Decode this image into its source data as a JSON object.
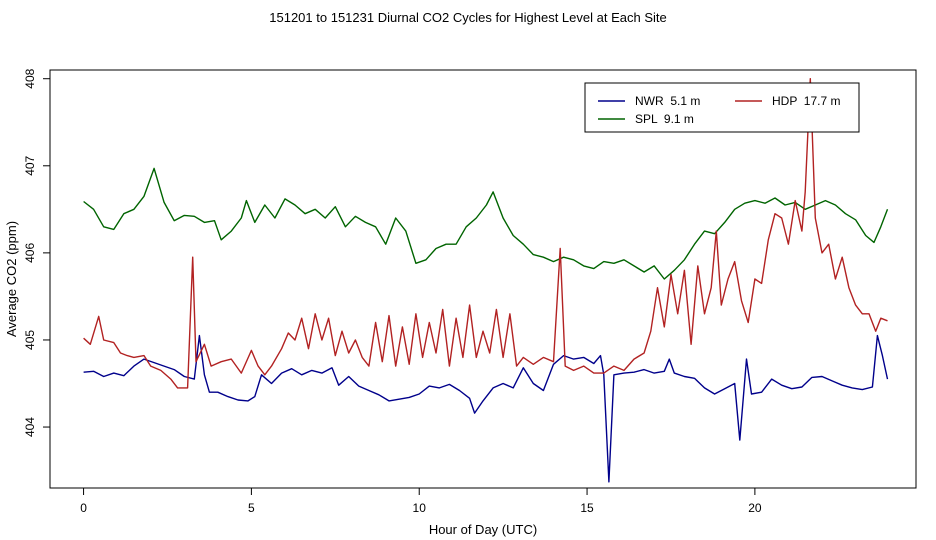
{
  "chart_data": {
    "type": "line",
    "title": "151201  to  151231 Diurnal CO2 Cycles for Highest Level at Each Site",
    "xlabel": "Hour of Day (UTC)",
    "ylabel": "Average CO2 (ppm)",
    "xlim": [
      -1,
      24.8
    ],
    "ylim": [
      403.3,
      408.1
    ],
    "xticks": [
      0,
      5,
      10,
      15,
      20
    ],
    "yticks": [
      404,
      405,
      406,
      407,
      408
    ],
    "grid": false,
    "legend_position": "top-right",
    "series": [
      {
        "name": "NWR  5.1 m",
        "color": "#00008B",
        "points": [
          [
            0.0,
            404.63
          ],
          [
            0.3,
            404.64
          ],
          [
            0.6,
            404.58
          ],
          [
            0.9,
            404.62
          ],
          [
            1.2,
            404.59
          ],
          [
            1.5,
            404.7
          ],
          [
            1.8,
            404.78
          ],
          [
            2.1,
            404.74
          ],
          [
            2.4,
            404.7
          ],
          [
            2.7,
            404.66
          ],
          [
            3.0,
            404.58
          ],
          [
            3.3,
            404.55
          ],
          [
            3.45,
            405.05
          ],
          [
            3.6,
            404.6
          ],
          [
            3.75,
            404.4
          ],
          [
            4.0,
            404.4
          ],
          [
            4.3,
            404.35
          ],
          [
            4.6,
            404.31
          ],
          [
            4.9,
            404.3
          ],
          [
            5.1,
            404.35
          ],
          [
            5.3,
            404.6
          ],
          [
            5.6,
            404.5
          ],
          [
            5.9,
            404.62
          ],
          [
            6.2,
            404.67
          ],
          [
            6.5,
            404.6
          ],
          [
            6.8,
            404.65
          ],
          [
            7.1,
            404.62
          ],
          [
            7.4,
            404.68
          ],
          [
            7.6,
            404.48
          ],
          [
            7.9,
            404.58
          ],
          [
            8.2,
            404.47
          ],
          [
            8.5,
            404.42
          ],
          [
            8.8,
            404.37
          ],
          [
            9.1,
            404.3
          ],
          [
            9.4,
            404.32
          ],
          [
            9.7,
            404.34
          ],
          [
            10.0,
            404.38
          ],
          [
            10.3,
            404.47
          ],
          [
            10.6,
            404.45
          ],
          [
            10.9,
            404.49
          ],
          [
            11.2,
            404.42
          ],
          [
            11.5,
            404.33
          ],
          [
            11.65,
            404.16
          ],
          [
            11.9,
            404.3
          ],
          [
            12.2,
            404.45
          ],
          [
            12.5,
            404.5
          ],
          [
            12.8,
            404.45
          ],
          [
            13.1,
            404.68
          ],
          [
            13.4,
            404.5
          ],
          [
            13.7,
            404.42
          ],
          [
            14.0,
            404.72
          ],
          [
            14.3,
            404.82
          ],
          [
            14.6,
            404.78
          ],
          [
            14.9,
            404.8
          ],
          [
            15.2,
            404.73
          ],
          [
            15.4,
            404.82
          ],
          [
            15.5,
            404.6
          ],
          [
            15.65,
            403.37
          ],
          [
            15.8,
            404.6
          ],
          [
            16.1,
            404.62
          ],
          [
            16.4,
            404.63
          ],
          [
            16.7,
            404.66
          ],
          [
            17.0,
            404.62
          ],
          [
            17.3,
            404.64
          ],
          [
            17.45,
            404.78
          ],
          [
            17.6,
            404.62
          ],
          [
            17.9,
            404.58
          ],
          [
            18.2,
            404.56
          ],
          [
            18.5,
            404.45
          ],
          [
            18.8,
            404.38
          ],
          [
            19.1,
            404.44
          ],
          [
            19.4,
            404.5
          ],
          [
            19.55,
            403.85
          ],
          [
            19.75,
            404.78
          ],
          [
            19.9,
            404.38
          ],
          [
            20.2,
            404.4
          ],
          [
            20.5,
            404.55
          ],
          [
            20.8,
            404.48
          ],
          [
            21.1,
            404.44
          ],
          [
            21.4,
            404.46
          ],
          [
            21.7,
            404.57
          ],
          [
            22.0,
            404.58
          ],
          [
            22.3,
            404.53
          ],
          [
            22.6,
            404.48
          ],
          [
            22.9,
            404.45
          ],
          [
            23.2,
            404.43
          ],
          [
            23.5,
            404.46
          ],
          [
            23.65,
            405.05
          ],
          [
            23.8,
            404.82
          ],
          [
            23.95,
            404.55
          ]
        ]
      },
      {
        "name": "SPL  9.1 m",
        "color": "#006400",
        "points": [
          [
            0.0,
            406.59
          ],
          [
            0.3,
            406.5
          ],
          [
            0.6,
            406.3
          ],
          [
            0.9,
            406.27
          ],
          [
            1.2,
            406.45
          ],
          [
            1.5,
            406.5
          ],
          [
            1.8,
            406.65
          ],
          [
            2.1,
            406.97
          ],
          [
            2.4,
            406.58
          ],
          [
            2.7,
            406.37
          ],
          [
            3.0,
            406.43
          ],
          [
            3.3,
            406.42
          ],
          [
            3.6,
            406.35
          ],
          [
            3.9,
            406.37
          ],
          [
            4.1,
            406.15
          ],
          [
            4.4,
            406.25
          ],
          [
            4.7,
            406.4
          ],
          [
            4.85,
            406.6
          ],
          [
            5.1,
            406.35
          ],
          [
            5.4,
            406.55
          ],
          [
            5.7,
            406.4
          ],
          [
            6.0,
            406.62
          ],
          [
            6.3,
            406.55
          ],
          [
            6.6,
            406.45
          ],
          [
            6.9,
            406.5
          ],
          [
            7.2,
            406.4
          ],
          [
            7.5,
            406.53
          ],
          [
            7.8,
            406.3
          ],
          [
            8.1,
            406.42
          ],
          [
            8.4,
            406.35
          ],
          [
            8.7,
            406.3
          ],
          [
            9.0,
            406.1
          ],
          [
            9.3,
            406.4
          ],
          [
            9.6,
            406.25
          ],
          [
            9.9,
            405.88
          ],
          [
            10.2,
            405.92
          ],
          [
            10.5,
            406.05
          ],
          [
            10.8,
            406.1
          ],
          [
            11.1,
            406.1
          ],
          [
            11.4,
            406.3
          ],
          [
            11.7,
            406.4
          ],
          [
            12.0,
            406.55
          ],
          [
            12.2,
            406.7
          ],
          [
            12.5,
            406.4
          ],
          [
            12.8,
            406.2
          ],
          [
            13.1,
            406.1
          ],
          [
            13.4,
            405.98
          ],
          [
            13.7,
            405.95
          ],
          [
            14.0,
            405.9
          ],
          [
            14.3,
            405.95
          ],
          [
            14.6,
            405.92
          ],
          [
            14.9,
            405.85
          ],
          [
            15.2,
            405.82
          ],
          [
            15.5,
            405.9
          ],
          [
            15.8,
            405.88
          ],
          [
            16.1,
            405.92
          ],
          [
            16.4,
            405.85
          ],
          [
            16.7,
            405.78
          ],
          [
            17.0,
            405.85
          ],
          [
            17.3,
            405.7
          ],
          [
            17.6,
            405.8
          ],
          [
            17.9,
            405.92
          ],
          [
            18.2,
            406.1
          ],
          [
            18.5,
            406.25
          ],
          [
            18.8,
            406.22
          ],
          [
            19.1,
            406.35
          ],
          [
            19.4,
            406.5
          ],
          [
            19.7,
            406.57
          ],
          [
            20.0,
            406.6
          ],
          [
            20.3,
            406.57
          ],
          [
            20.6,
            406.63
          ],
          [
            20.9,
            406.55
          ],
          [
            21.2,
            406.58
          ],
          [
            21.5,
            406.5
          ],
          [
            21.8,
            406.55
          ],
          [
            22.1,
            406.6
          ],
          [
            22.4,
            406.55
          ],
          [
            22.7,
            406.45
          ],
          [
            23.0,
            406.38
          ],
          [
            23.3,
            406.2
          ],
          [
            23.55,
            406.12
          ],
          [
            23.75,
            406.3
          ],
          [
            23.95,
            406.5
          ]
        ]
      },
      {
        "name": "HDP  17.7 m",
        "color": "#B22222",
        "points": [
          [
            0.0,
            405.02
          ],
          [
            0.2,
            404.95
          ],
          [
            0.45,
            405.27
          ],
          [
            0.6,
            405.0
          ],
          [
            0.9,
            404.97
          ],
          [
            1.1,
            404.85
          ],
          [
            1.3,
            404.82
          ],
          [
            1.5,
            404.8
          ],
          [
            1.8,
            404.82
          ],
          [
            2.0,
            404.7
          ],
          [
            2.3,
            404.65
          ],
          [
            2.6,
            404.55
          ],
          [
            2.8,
            404.45
          ],
          [
            3.1,
            404.45
          ],
          [
            3.25,
            405.95
          ],
          [
            3.35,
            404.75
          ],
          [
            3.6,
            404.95
          ],
          [
            3.8,
            404.7
          ],
          [
            4.1,
            404.75
          ],
          [
            4.4,
            404.78
          ],
          [
            4.7,
            404.62
          ],
          [
            5.0,
            404.88
          ],
          [
            5.2,
            404.7
          ],
          [
            5.4,
            404.6
          ],
          [
            5.6,
            404.7
          ],
          [
            5.9,
            404.9
          ],
          [
            6.1,
            405.08
          ],
          [
            6.3,
            405.0
          ],
          [
            6.5,
            405.25
          ],
          [
            6.7,
            404.9
          ],
          [
            6.9,
            405.3
          ],
          [
            7.1,
            405.0
          ],
          [
            7.3,
            405.25
          ],
          [
            7.5,
            404.82
          ],
          [
            7.7,
            405.1
          ],
          [
            7.9,
            404.85
          ],
          [
            8.1,
            405.0
          ],
          [
            8.3,
            404.8
          ],
          [
            8.5,
            404.7
          ],
          [
            8.7,
            405.2
          ],
          [
            8.9,
            404.75
          ],
          [
            9.1,
            405.28
          ],
          [
            9.3,
            404.7
          ],
          [
            9.5,
            405.15
          ],
          [
            9.7,
            404.72
          ],
          [
            9.9,
            405.3
          ],
          [
            10.1,
            404.8
          ],
          [
            10.3,
            405.2
          ],
          [
            10.5,
            404.85
          ],
          [
            10.7,
            405.35
          ],
          [
            10.9,
            404.7
          ],
          [
            11.1,
            405.25
          ],
          [
            11.3,
            404.8
          ],
          [
            11.5,
            405.4
          ],
          [
            11.7,
            404.8
          ],
          [
            11.9,
            405.1
          ],
          [
            12.1,
            404.85
          ],
          [
            12.3,
            405.35
          ],
          [
            12.5,
            404.8
          ],
          [
            12.7,
            405.3
          ],
          [
            12.9,
            404.7
          ],
          [
            13.1,
            404.8
          ],
          [
            13.4,
            404.72
          ],
          [
            13.7,
            404.8
          ],
          [
            14.0,
            404.75
          ],
          [
            14.2,
            406.05
          ],
          [
            14.35,
            404.7
          ],
          [
            14.6,
            404.65
          ],
          [
            14.9,
            404.7
          ],
          [
            15.2,
            404.62
          ],
          [
            15.5,
            404.62
          ],
          [
            15.8,
            404.7
          ],
          [
            16.1,
            404.65
          ],
          [
            16.4,
            404.78
          ],
          [
            16.7,
            404.85
          ],
          [
            16.9,
            405.1
          ],
          [
            17.1,
            405.6
          ],
          [
            17.3,
            405.15
          ],
          [
            17.5,
            405.75
          ],
          [
            17.7,
            405.3
          ],
          [
            17.9,
            405.8
          ],
          [
            18.1,
            404.95
          ],
          [
            18.3,
            405.85
          ],
          [
            18.5,
            405.3
          ],
          [
            18.7,
            405.6
          ],
          [
            18.85,
            406.25
          ],
          [
            19.0,
            405.4
          ],
          [
            19.2,
            405.7
          ],
          [
            19.4,
            405.9
          ],
          [
            19.6,
            405.45
          ],
          [
            19.8,
            405.2
          ],
          [
            20.0,
            405.7
          ],
          [
            20.2,
            405.65
          ],
          [
            20.4,
            406.15
          ],
          [
            20.6,
            406.45
          ],
          [
            20.8,
            406.4
          ],
          [
            21.0,
            406.1
          ],
          [
            21.2,
            406.6
          ],
          [
            21.4,
            406.25
          ],
          [
            21.5,
            406.7
          ],
          [
            21.65,
            408.0
          ],
          [
            21.8,
            406.4
          ],
          [
            22.0,
            406.0
          ],
          [
            22.2,
            406.1
          ],
          [
            22.4,
            405.7
          ],
          [
            22.6,
            405.95
          ],
          [
            22.8,
            405.6
          ],
          [
            23.0,
            405.4
          ],
          [
            23.2,
            405.3
          ],
          [
            23.4,
            405.3
          ],
          [
            23.6,
            405.1
          ],
          [
            23.75,
            405.25
          ],
          [
            23.95,
            405.22
          ]
        ]
      }
    ]
  }
}
